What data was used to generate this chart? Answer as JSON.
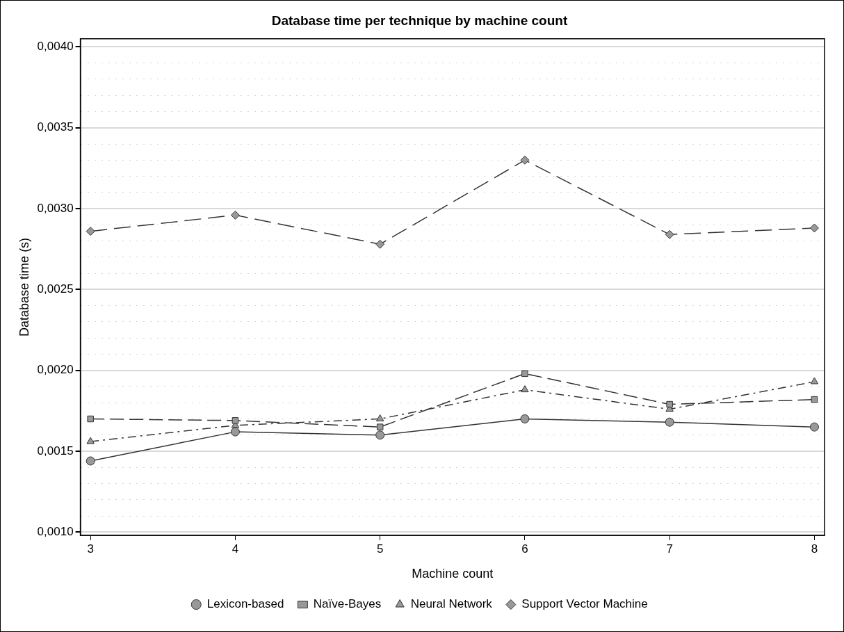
{
  "chart_data": {
    "type": "line",
    "title": "Database time per technique by machine count",
    "xlabel": "Machine count",
    "ylabel": "Database time (s)",
    "x": [
      3,
      4,
      5,
      6,
      7,
      8
    ],
    "series": [
      {
        "name": "Lexicon-based",
        "color": "#333333",
        "marker": "circle",
        "line_style": "solid",
        "values": [
          0.00144,
          0.00162,
          0.0016,
          0.0017,
          0.00168,
          0.00165
        ]
      },
      {
        "name": "Naïve-Bayes",
        "color": "#333333",
        "marker": "square",
        "line_style": "dashed",
        "values": [
          0.0017,
          0.00169,
          0.00165,
          0.00198,
          0.00179,
          0.00182
        ]
      },
      {
        "name": "Neural Network",
        "color": "#333333",
        "marker": "triangle",
        "line_style": "dashed",
        "values": [
          0.00156,
          0.00166,
          0.0017,
          0.00188,
          0.00176,
          0.00193
        ]
      },
      {
        "name": "Support Vector Machine",
        "color": "#333333",
        "marker": "diamond",
        "line_style": "dashed",
        "values": [
          0.00286,
          0.00296,
          0.00278,
          0.0033,
          0.00284,
          0.00288
        ]
      }
    ],
    "xlim": [
      2.93,
      8.07
    ],
    "xticks": [
      3,
      4,
      5,
      6,
      7,
      8
    ],
    "ylim": [
      0.00098,
      0.00405
    ],
    "yticks": [
      {
        "value": 0.001,
        "label": "0,0010"
      },
      {
        "value": 0.0011,
        "label": null
      },
      {
        "value": 0.0012,
        "label": null
      },
      {
        "value": 0.0013,
        "label": null
      },
      {
        "value": 0.0014,
        "label": null
      },
      {
        "value": 0.0015,
        "label": "0,0015"
      },
      {
        "value": 0.0016,
        "label": null
      },
      {
        "value": 0.0017,
        "label": null
      },
      {
        "value": 0.0018,
        "label": null
      },
      {
        "value": 0.0019,
        "label": null
      },
      {
        "value": 0.002,
        "label": "0,0020"
      },
      {
        "value": 0.0021,
        "label": null
      },
      {
        "value": 0.0022,
        "label": null
      },
      {
        "value": 0.0023,
        "label": null
      },
      {
        "value": 0.0024,
        "label": null
      },
      {
        "value": 0.0025,
        "label": "0,0025"
      },
      {
        "value": 0.0026,
        "label": null
      },
      {
        "value": 0.0027,
        "label": null
      },
      {
        "value": 0.0028,
        "label": null
      },
      {
        "value": 0.0029,
        "label": null
      },
      {
        "value": 0.003,
        "label": "0,0030"
      },
      {
        "value": 0.0031,
        "label": null
      },
      {
        "value": 0.0032,
        "label": null
      },
      {
        "value": 0.0033,
        "label": null
      },
      {
        "value": 0.0034,
        "label": null
      },
      {
        "value": 0.0035,
        "label": "0,0035"
      },
      {
        "value": 0.0036,
        "label": null
      },
      {
        "value": 0.0037,
        "label": null
      },
      {
        "value": 0.0038,
        "label": null
      },
      {
        "value": 0.0039,
        "label": null
      },
      {
        "value": 0.004,
        "label": "0,0040"
      }
    ],
    "grid": "y",
    "legend": "bottom"
  }
}
